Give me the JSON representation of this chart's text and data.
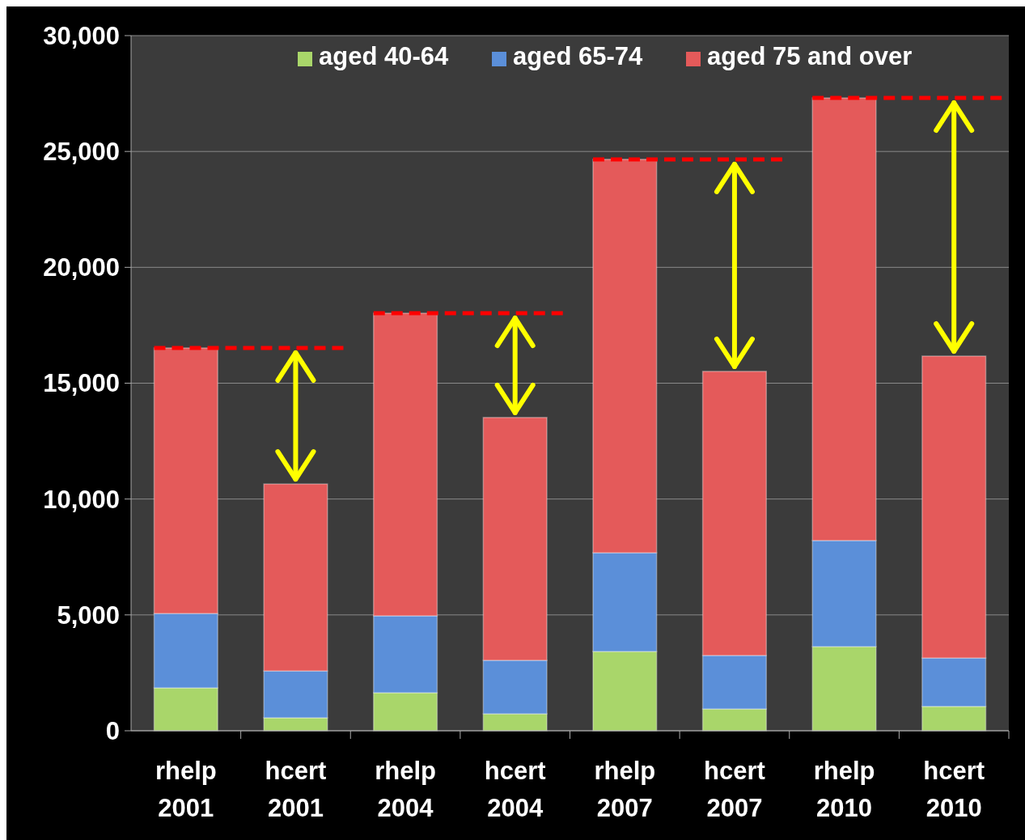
{
  "chart_data": {
    "type": "bar",
    "stacked": true,
    "categories": [
      "rhelp 2001",
      "hcert 2001",
      "rhelp 2004",
      "hcert 2004",
      "rhelp 2007",
      "hcert 2007",
      "rhelp 2010",
      "hcert 2010"
    ],
    "series": [
      {
        "name": "aged 40-64",
        "color": "#a9d66a",
        "values": [
          1850,
          560,
          1640,
          730,
          3420,
          940,
          3630,
          1050
        ]
      },
      {
        "name": "aged 65-74",
        "color": "#5b8fd9",
        "values": [
          3210,
          2020,
          3320,
          2310,
          4260,
          2310,
          4580,
          2090
        ]
      },
      {
        "name": "aged 75 and over",
        "color": "#e45a5a",
        "values": [
          11460,
          8070,
          13060,
          10480,
          16980,
          12260,
          19100,
          13030
        ]
      }
    ],
    "ylim": [
      0,
      30000
    ],
    "yticks": [
      {
        "value": 0,
        "label": "0"
      },
      {
        "value": 5000,
        "label": "5,000"
      },
      {
        "value": 10000,
        "label": "10,000"
      },
      {
        "value": 15000,
        "label": "15,000"
      },
      {
        "value": 20000,
        "label": "20,000"
      },
      {
        "value": 25000,
        "label": "25,000"
      },
      {
        "value": 30000,
        "label": "30,000"
      }
    ],
    "grid": "y",
    "legend": "top",
    "ref_lines": [
      {
        "axis": "y",
        "value": 16520,
        "color": "#ff0000",
        "line_style": "dashed"
      },
      {
        "axis": "y",
        "value": 18020,
        "color": "#ff0000",
        "line_style": "dashed"
      },
      {
        "axis": "y",
        "value": 24660,
        "color": "#ff0000",
        "line_style": "dashed"
      },
      {
        "axis": "y",
        "value": 27310,
        "color": "#ff0000",
        "line_style": "dashed"
      }
    ]
  }
}
